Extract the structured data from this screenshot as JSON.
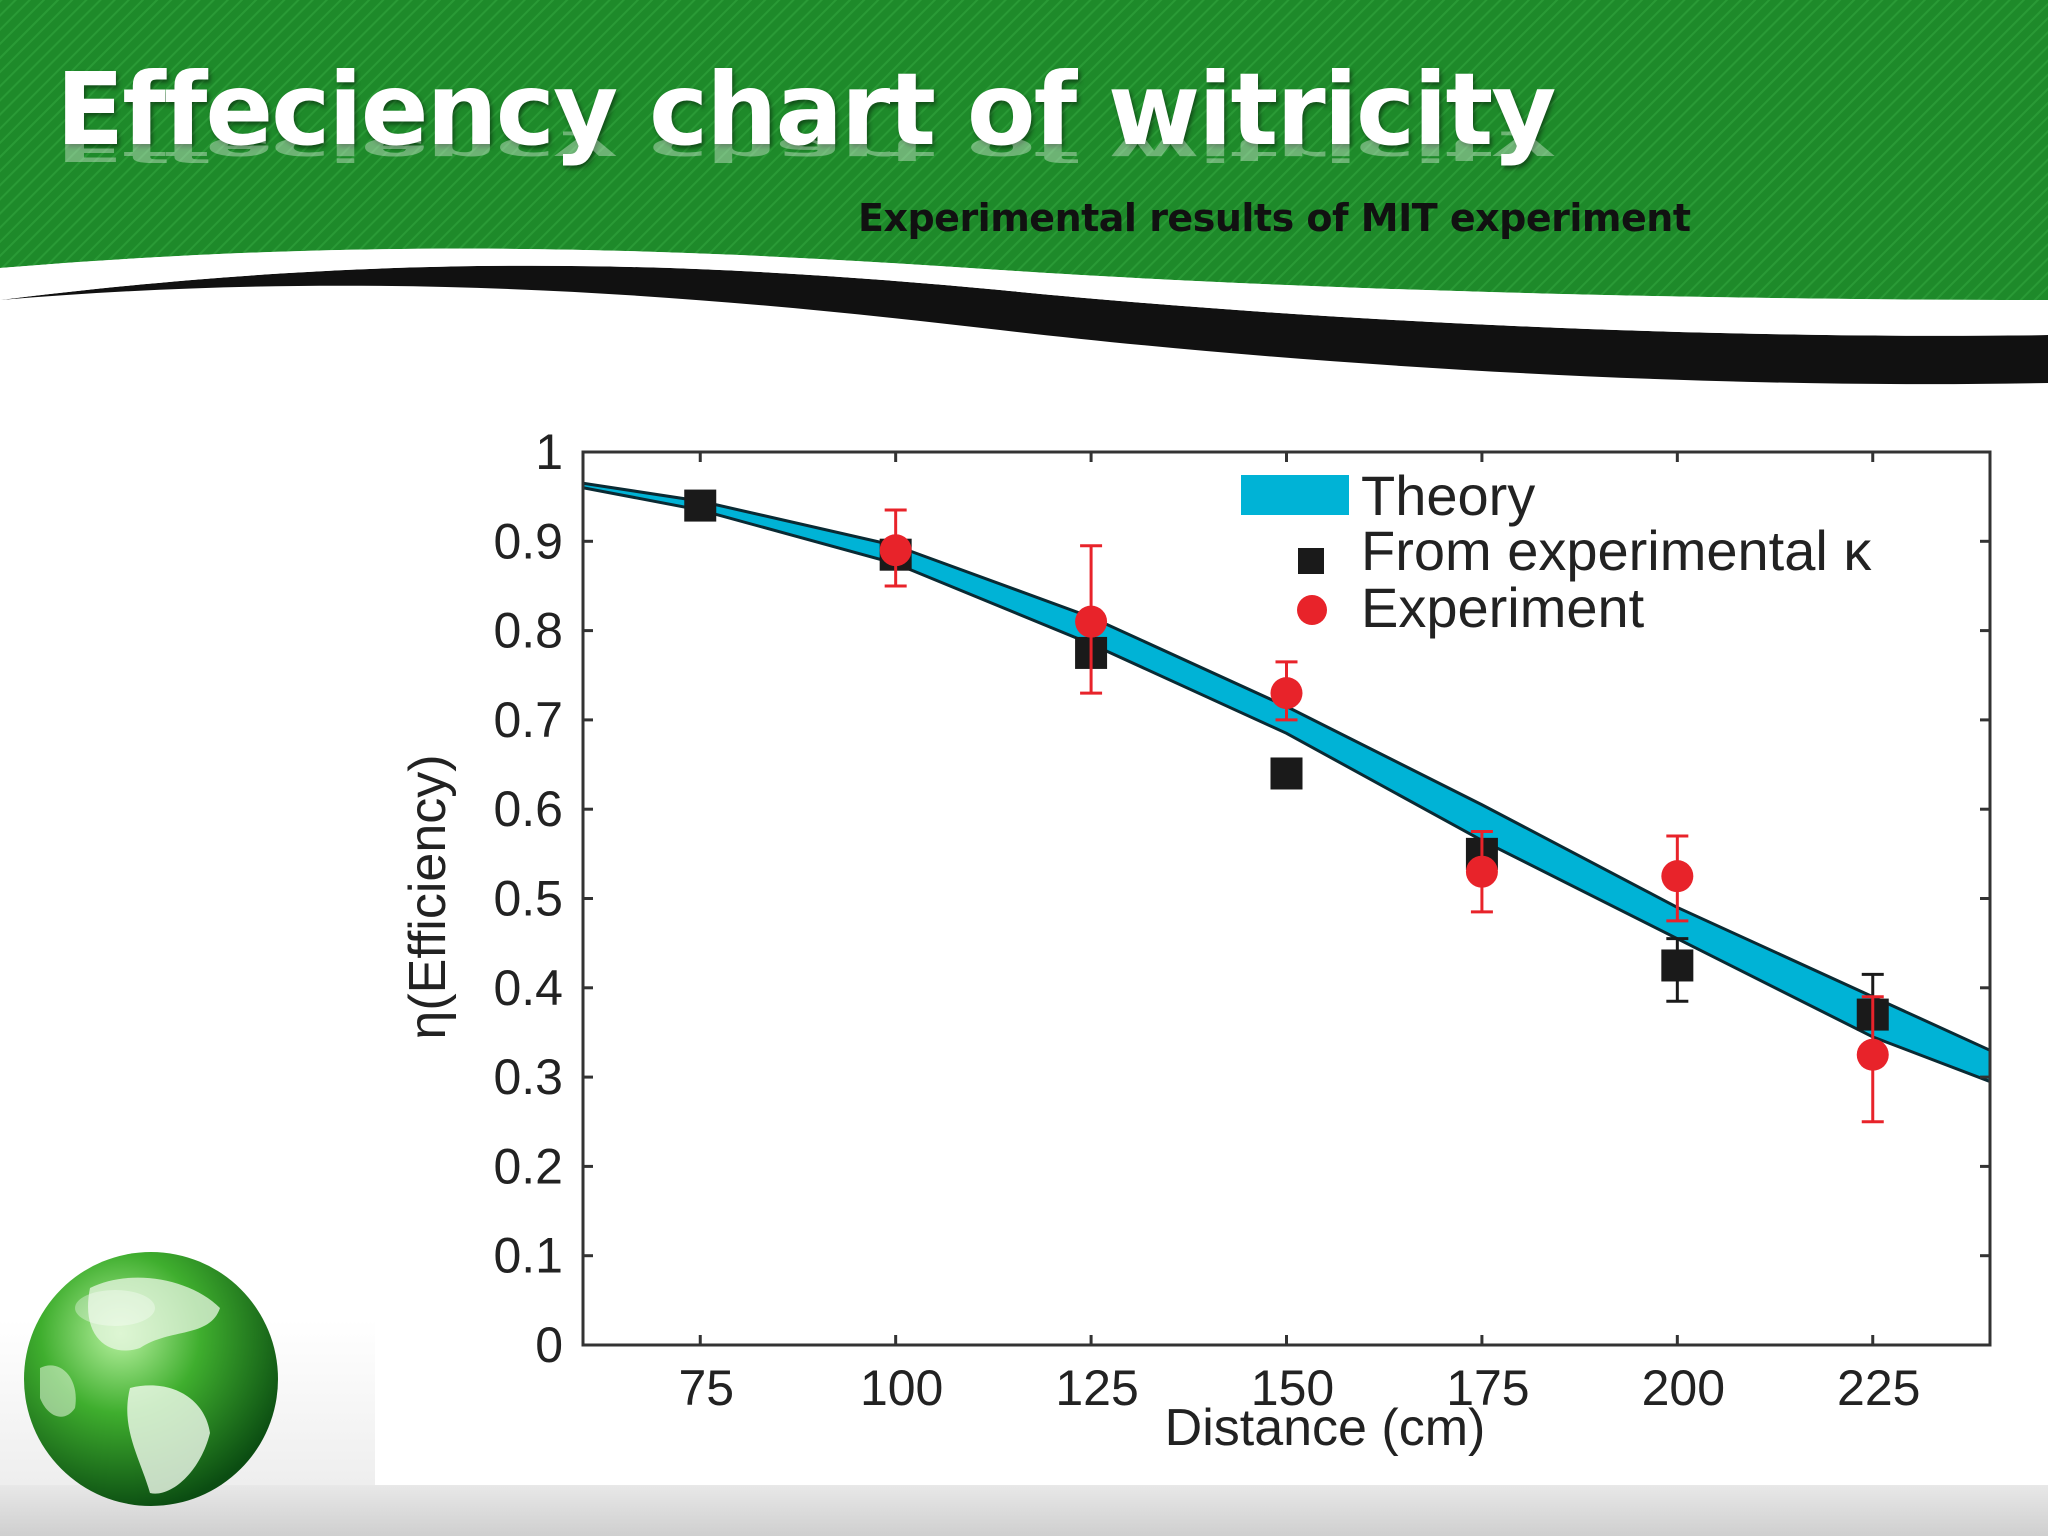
{
  "slide": {
    "title": "Effeciency chart of witricity",
    "subtitle": "Experimental results of MIT experiment"
  },
  "colors": {
    "header_green": "#1e8a2a",
    "theory_band": "#00b3d6",
    "experiment_red": "#e8232a",
    "marker_black": "#1a1a1a"
  },
  "chart_data": {
    "type": "scatter",
    "xlabel": "Distance (cm)",
    "ylabel": "η(Efficiency)",
    "xlim": [
      60,
      240
    ],
    "ylim": [
      0,
      1
    ],
    "xticks": [
      75,
      100,
      125,
      150,
      175,
      200,
      225
    ],
    "yticks": [
      0,
      0.1,
      0.2,
      0.3,
      0.4,
      0.5,
      0.6,
      0.7,
      0.8,
      0.9,
      1
    ],
    "ytick_labels": [
      "0",
      "0.1",
      "0.2",
      "0.3",
      "0.4",
      "0.5",
      "0.6",
      "0.7",
      "0.8",
      "0.9",
      "1"
    ],
    "legend_position": "top-right",
    "theory_band": {
      "name": "Theory",
      "x": [
        60,
        75,
        100,
        125,
        150,
        175,
        200,
        225,
        240
      ],
      "upper": [
        0.965,
        0.945,
        0.895,
        0.815,
        0.715,
        0.605,
        0.49,
        0.39,
        0.33
      ],
      "lower": [
        0.96,
        0.935,
        0.875,
        0.785,
        0.685,
        0.565,
        0.455,
        0.345,
        0.295
      ]
    },
    "series": [
      {
        "name": "From experimental κ",
        "marker": "square",
        "x": [
          75,
          100,
          125,
          150,
          175,
          200,
          225
        ],
        "y": [
          0.94,
          0.885,
          0.775,
          0.64,
          0.55,
          0.425,
          0.37
        ],
        "err_lo": [
          0,
          0,
          0,
          0,
          0,
          0.04,
          0
        ],
        "err_hi": [
          0,
          0,
          0,
          0,
          0,
          0.03,
          0.045
        ]
      },
      {
        "name": "Experiment",
        "marker": "circle",
        "x": [
          100,
          125,
          150,
          175,
          200,
          225
        ],
        "y": [
          0.89,
          0.81,
          0.73,
          0.53,
          0.525,
          0.325
        ],
        "err_lo": [
          0.04,
          0.08,
          0.03,
          0.045,
          0.05,
          0.075
        ],
        "err_hi": [
          0.045,
          0.085,
          0.035,
          0.045,
          0.045,
          0.065
        ]
      }
    ]
  }
}
